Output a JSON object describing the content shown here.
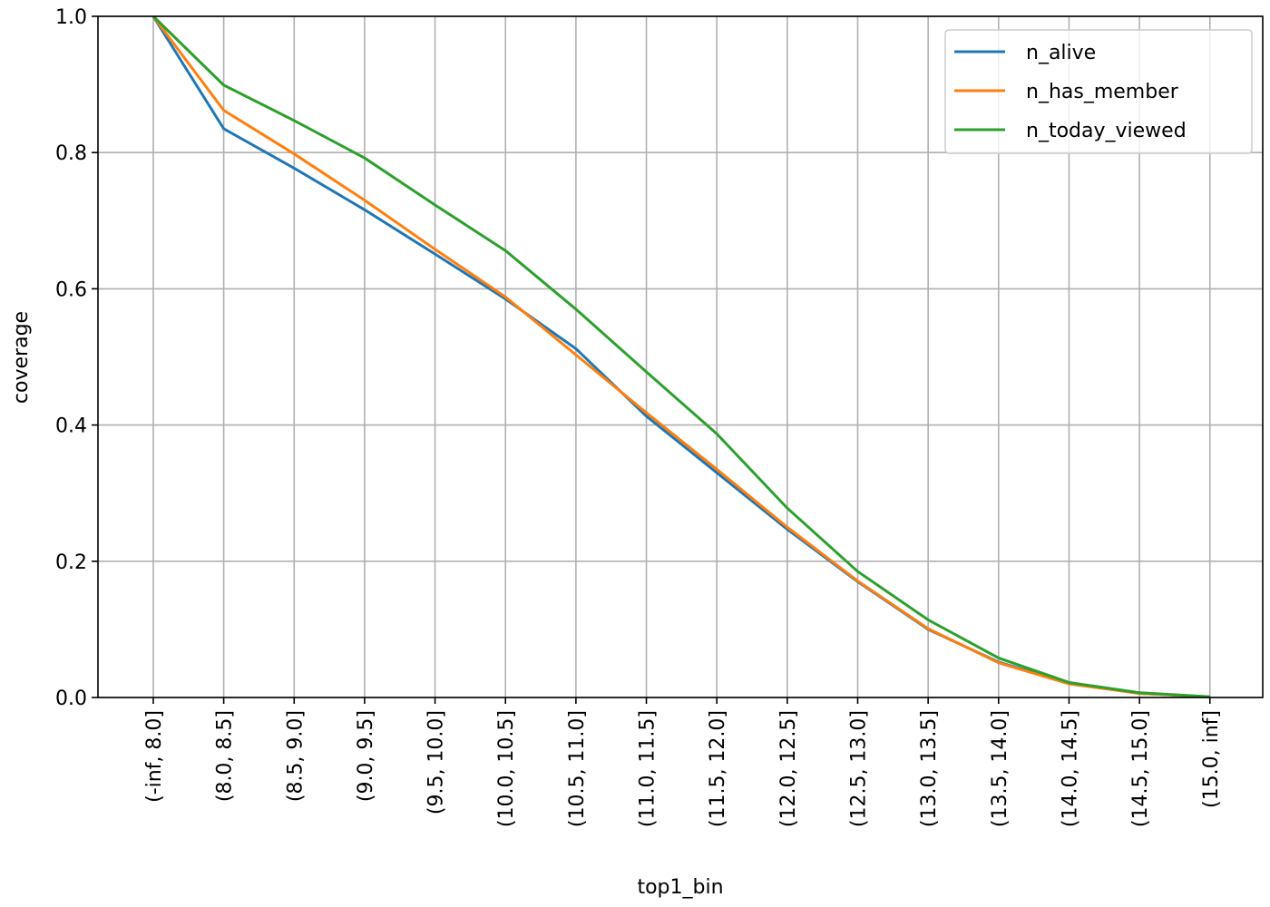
{
  "chart_data": {
    "type": "line",
    "x_label": "top1_bin",
    "y_label": "coverage",
    "categories": [
      "(-inf, 8.0]",
      "(8.0, 8.5]",
      "(8.5, 9.0]",
      "(9.0, 9.5]",
      "(9.5, 10.0]",
      "(10.0, 10.5]",
      "(10.5, 11.0]",
      "(11.0, 11.5]",
      "(11.5, 12.0]",
      "(12.0, 12.5]",
      "(12.5, 13.0]",
      "(13.0, 13.5]",
      "(13.5, 14.0]",
      "(14.0, 14.5]",
      "(14.5, 15.0]",
      "(15.0, inf]"
    ],
    "series": [
      {
        "name": "n_alive",
        "color": "#1f77b4",
        "values": [
          1.0,
          0.835,
          0.777,
          0.716,
          0.651,
          0.585,
          0.512,
          0.413,
          0.33,
          0.247,
          0.17,
          0.1,
          0.052,
          0.021,
          0.006,
          0.001
        ]
      },
      {
        "name": "n_has_member",
        "color": "#ff7f0e",
        "values": [
          1.0,
          0.862,
          0.798,
          0.73,
          0.658,
          0.588,
          0.503,
          0.418,
          0.335,
          0.25,
          0.171,
          0.101,
          0.051,
          0.02,
          0.006,
          0.001
        ]
      },
      {
        "name": "n_today_viewed",
        "color": "#2ca02c",
        "values": [
          1.0,
          0.899,
          0.847,
          0.792,
          0.723,
          0.656,
          0.57,
          0.478,
          0.387,
          0.278,
          0.185,
          0.114,
          0.058,
          0.022,
          0.007,
          0.001
        ]
      }
    ],
    "ylim": [
      0,
      1
    ],
    "yticks": [
      {
        "value": 0,
        "label": "0.0"
      },
      0.2,
      0.4,
      0.6,
      0.8,
      {
        "value": 1,
        "label": "1.0"
      }
    ],
    "grid": true,
    "legend": "upper right"
  }
}
